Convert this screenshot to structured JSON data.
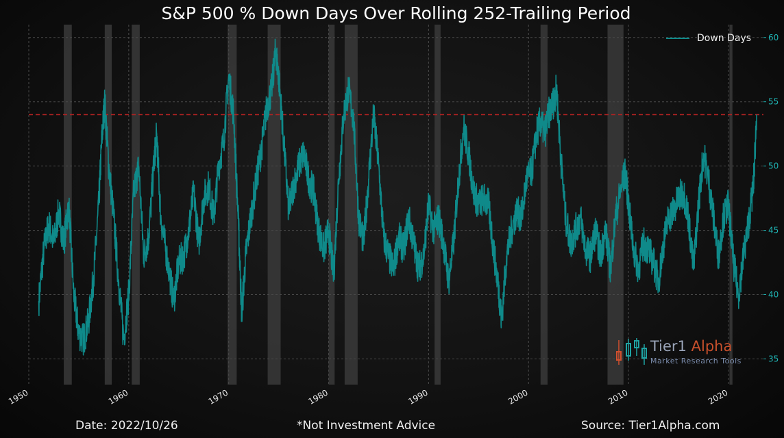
{
  "chart_data": {
    "type": "line",
    "title": "S&P 500 % Down Days Over Rolling 252-Trailing Period",
    "xlabel": "",
    "ylabel": "",
    "xlim": [
      1950,
      2023.5
    ],
    "ylim": [
      33,
      61
    ],
    "x_ticks": [
      "1950",
      "1960",
      "1970",
      "1980",
      "1990",
      "2000",
      "2010",
      "2020"
    ],
    "y_ticks": [
      35,
      40,
      45,
      50,
      55,
      60
    ],
    "y_axis_side": "right",
    "grid": true,
    "legend_position": "top-right",
    "threshold_line": {
      "y": 54,
      "style": "dashed",
      "color": "#b22222"
    },
    "shaded_periods": [
      [
        1953.5,
        1954.3
      ],
      [
        1957.6,
        1958.3
      ],
      [
        1960.3,
        1961.1
      ],
      [
        1969.9,
        1970.8
      ],
      [
        1973.9,
        1975.2
      ],
      [
        1980.0,
        1980.6
      ],
      [
        1981.6,
        1982.9
      ],
      [
        1990.6,
        1991.2
      ],
      [
        2001.2,
        2001.9
      ],
      [
        2007.9,
        2009.5
      ],
      [
        2020.1,
        2020.4
      ]
    ],
    "series": [
      {
        "name": "Down Days",
        "color": "#0f8a8a",
        "points": [
          [
            1951.0,
            39.5
          ],
          [
            1951.5,
            43.5
          ],
          [
            1952.0,
            45.5
          ],
          [
            1952.5,
            44.0
          ],
          [
            1953.0,
            46.5
          ],
          [
            1953.5,
            44.0
          ],
          [
            1954.0,
            47.0
          ],
          [
            1954.5,
            40.0
          ],
          [
            1955.0,
            37.0
          ],
          [
            1955.5,
            36.5
          ],
          [
            1956.0,
            38.0
          ],
          [
            1956.5,
            41.5
          ],
          [
            1957.0,
            47.0
          ],
          [
            1957.3,
            52.0
          ],
          [
            1957.6,
            55.0
          ],
          [
            1958.0,
            50.0
          ],
          [
            1958.5,
            46.0
          ],
          [
            1959.0,
            41.0
          ],
          [
            1959.5,
            36.5
          ],
          [
            1960.0,
            40.0
          ],
          [
            1960.5,
            48.0
          ],
          [
            1961.0,
            50.0
          ],
          [
            1961.5,
            43.0
          ],
          [
            1962.0,
            44.5
          ],
          [
            1962.5,
            50.0
          ],
          [
            1962.8,
            52.5
          ],
          [
            1963.2,
            46.0
          ],
          [
            1963.8,
            43.0
          ],
          [
            1964.5,
            39.5
          ],
          [
            1965.0,
            42.5
          ],
          [
            1965.5,
            43.0
          ],
          [
            1966.0,
            45.0
          ],
          [
            1966.5,
            48.0
          ],
          [
            1967.0,
            44.0
          ],
          [
            1967.5,
            47.5
          ],
          [
            1968.0,
            48.5
          ],
          [
            1968.5,
            46.0
          ],
          [
            1969.0,
            50.0
          ],
          [
            1969.5,
            52.0
          ],
          [
            1970.0,
            57.0
          ],
          [
            1970.5,
            54.0
          ],
          [
            1971.0,
            45.0
          ],
          [
            1971.3,
            38.5
          ],
          [
            1971.7,
            43.0
          ],
          [
            1972.2,
            46.0
          ],
          [
            1972.8,
            49.0
          ],
          [
            1973.3,
            51.5
          ],
          [
            1973.8,
            54.5
          ],
          [
            1974.3,
            56.0
          ],
          [
            1974.7,
            59.0
          ],
          [
            1975.0,
            57.0
          ],
          [
            1975.5,
            52.0
          ],
          [
            1976.0,
            46.5
          ],
          [
            1976.5,
            48.5
          ],
          [
            1977.0,
            50.0
          ],
          [
            1977.5,
            51.0
          ],
          [
            1978.0,
            49.0
          ],
          [
            1978.5,
            48.0
          ],
          [
            1979.0,
            45.0
          ],
          [
            1979.5,
            43.5
          ],
          [
            1980.0,
            45.0
          ],
          [
            1980.5,
            41.5
          ],
          [
            1981.0,
            49.0
          ],
          [
            1981.5,
            54.0
          ],
          [
            1982.0,
            56.0
          ],
          [
            1982.5,
            53.5
          ],
          [
            1983.0,
            46.0
          ],
          [
            1983.5,
            44.0
          ],
          [
            1984.0,
            49.0
          ],
          [
            1984.5,
            54.0
          ],
          [
            1985.0,
            50.0
          ],
          [
            1985.5,
            44.5
          ],
          [
            1986.0,
            43.0
          ],
          [
            1986.5,
            42.0
          ],
          [
            1987.0,
            44.5
          ],
          [
            1987.5,
            43.5
          ],
          [
            1988.0,
            46.0
          ],
          [
            1988.5,
            44.0
          ],
          [
            1989.0,
            42.0
          ],
          [
            1989.5,
            43.0
          ],
          [
            1990.0,
            47.0
          ],
          [
            1990.5,
            45.0
          ],
          [
            1991.0,
            46.0
          ],
          [
            1991.5,
            44.0
          ],
          [
            1992.0,
            41.0
          ],
          [
            1992.5,
            44.0
          ],
          [
            1993.0,
            49.0
          ],
          [
            1993.5,
            53.0
          ],
          [
            1994.0,
            51.0
          ],
          [
            1994.5,
            48.0
          ],
          [
            1995.0,
            47.0
          ],
          [
            1995.5,
            47.5
          ],
          [
            1996.0,
            47.0
          ],
          [
            1996.5,
            43.5
          ],
          [
            1997.0,
            40.5
          ],
          [
            1997.3,
            38.0
          ],
          [
            1997.8,
            43.0
          ],
          [
            1998.3,
            45.0
          ],
          [
            1998.8,
            46.5
          ],
          [
            1999.3,
            46.0
          ],
          [
            1999.8,
            49.0
          ],
          [
            2000.3,
            49.5
          ],
          [
            2000.8,
            52.5
          ],
          [
            2001.2,
            53.5
          ],
          [
            2001.6,
            52.5
          ],
          [
            2002.0,
            54.0
          ],
          [
            2002.5,
            55.0
          ],
          [
            2002.8,
            56.0
          ],
          [
            2003.2,
            51.0
          ],
          [
            2003.7,
            46.0
          ],
          [
            2004.2,
            44.0
          ],
          [
            2004.7,
            45.0
          ],
          [
            2005.2,
            46.0
          ],
          [
            2005.7,
            43.5
          ],
          [
            2006.2,
            43.0
          ],
          [
            2006.7,
            45.0
          ],
          [
            2007.2,
            43.0
          ],
          [
            2007.7,
            45.0
          ],
          [
            2008.2,
            42.0
          ],
          [
            2008.7,
            46.0
          ],
          [
            2009.3,
            48.5
          ],
          [
            2009.7,
            49.5
          ],
          [
            2010.0,
            47.0
          ],
          [
            2010.5,
            43.5
          ],
          [
            2011.0,
            42.0
          ],
          [
            2011.5,
            44.0
          ],
          [
            2012.0,
            43.5
          ],
          [
            2012.5,
            42.5
          ],
          [
            2013.0,
            41.0
          ],
          [
            2013.5,
            44.0
          ],
          [
            2014.0,
            46.0
          ],
          [
            2014.5,
            46.5
          ],
          [
            2015.0,
            47.5
          ],
          [
            2015.5,
            48.0
          ],
          [
            2016.0,
            46.0
          ],
          [
            2016.5,
            42.0
          ],
          [
            2017.0,
            47.0
          ],
          [
            2017.5,
            51.0
          ],
          [
            2018.0,
            49.0
          ],
          [
            2018.5,
            46.0
          ],
          [
            2019.0,
            43.0
          ],
          [
            2019.5,
            46.0
          ],
          [
            2020.0,
            47.0
          ],
          [
            2020.5,
            42.5
          ],
          [
            2021.0,
            40.0
          ],
          [
            2021.5,
            43.0
          ],
          [
            2022.0,
            45.5
          ],
          [
            2022.5,
            48.5
          ],
          [
            2022.82,
            54.0
          ]
        ]
      }
    ]
  },
  "legend": {
    "label": "Down Days"
  },
  "footer": {
    "date": "Date: 2022/10/26",
    "disclaimer": "*Not Investment Advice",
    "source": "Source: Tier1Alpha.com"
  },
  "logo": {
    "name_part1": "Tier1",
    "name_part2": "Alpha",
    "tagline": "Market  Research Tools"
  }
}
